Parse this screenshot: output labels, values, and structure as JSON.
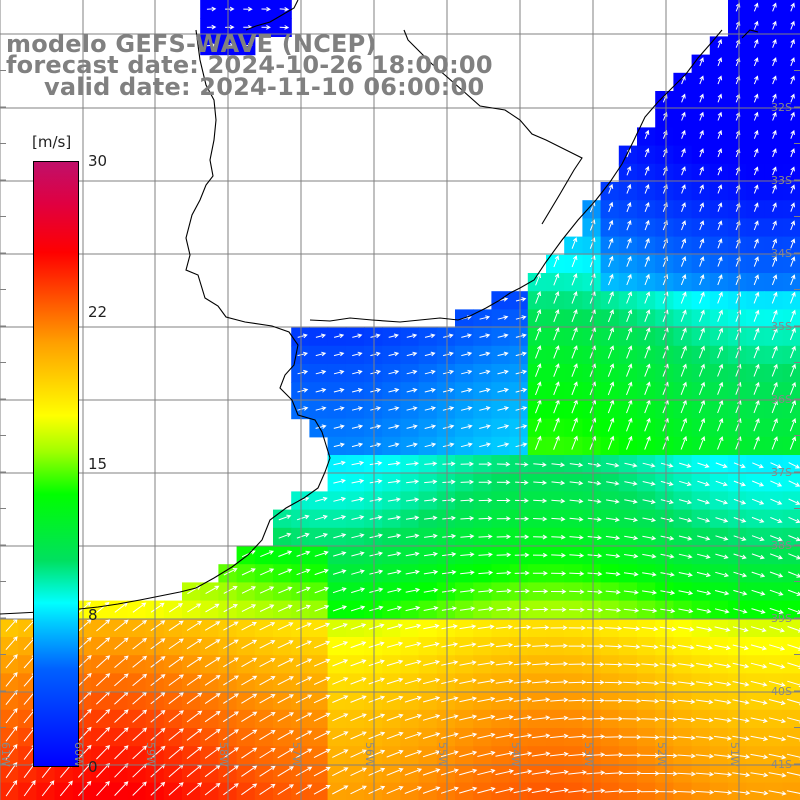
{
  "title": {
    "line1": "modelo GEFS-WAVE (NCEP)",
    "line2": "forecast date: 2024-10-26 18:00:00",
    "line3": "valid date: 2024-11-10 06:00:00"
  },
  "colorbar": {
    "unit": "[m/s]",
    "ticks": [
      "30",
      "22",
      "15",
      "8",
      "0"
    ],
    "tick_values": [
      30,
      22,
      15,
      8,
      0
    ],
    "colors": [
      "#0000ff",
      "#0060ff",
      "#00ffff",
      "#00ff00",
      "#ffff00",
      "#ff8000",
      "#ff0000",
      "#c0106a"
    ]
  },
  "map": {
    "lat_labels": [
      "32S",
      "33S",
      "34S",
      "35S",
      "36S",
      "37S",
      "38S",
      "39S",
      "40S",
      "41S"
    ],
    "lon_labels": [
      "61W",
      "60W",
      "59W",
      "58W",
      "57W",
      "56W",
      "55W",
      "54W",
      "53W",
      "52W",
      "51W"
    ],
    "region": "Rio de la Plata / South Atlantic",
    "colors": {
      "land": "#ffffff",
      "grid": "#808080",
      "coast": "#000000",
      "vectors": "#ffffff"
    }
  }
}
